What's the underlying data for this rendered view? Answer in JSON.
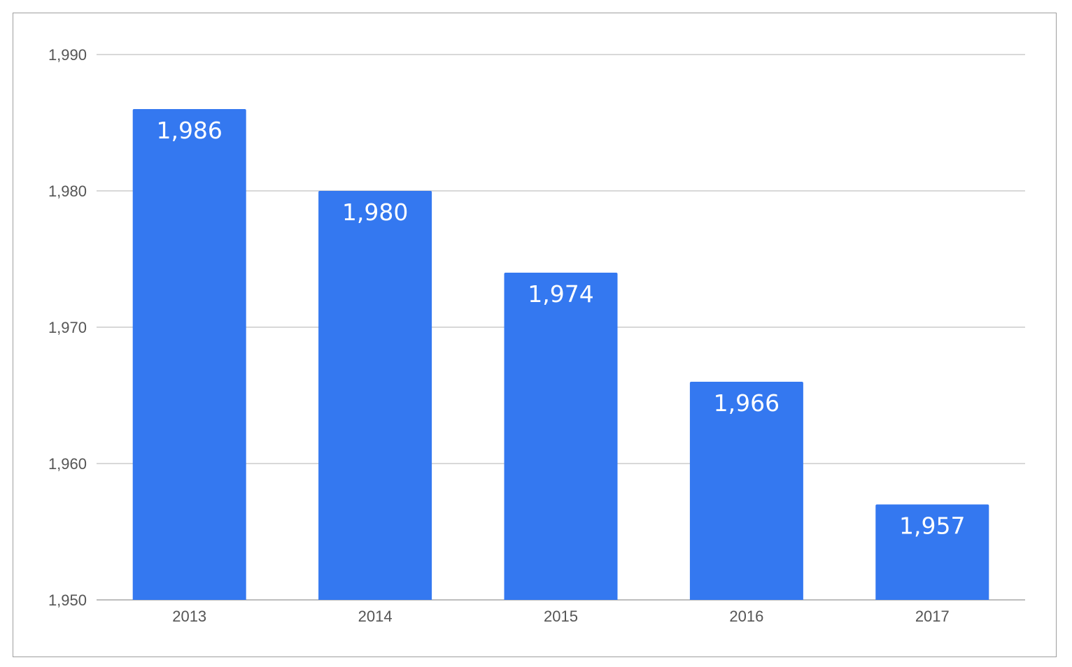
{
  "chart_data": {
    "type": "bar",
    "categories": [
      "2013",
      "2014",
      "2015",
      "2016",
      "2017"
    ],
    "values": [
      1986,
      1980,
      1974,
      1966,
      1957
    ],
    "value_labels": [
      "1,986",
      "1,980",
      "1,974",
      "1,966",
      "1,957"
    ],
    "ylim": [
      1950,
      1990
    ],
    "y_ticks": [
      1950,
      1960,
      1970,
      1980,
      1990
    ],
    "y_tick_labels": [
      "1,950",
      "1,960",
      "1,970",
      "1,980",
      "1,990"
    ],
    "grid": true,
    "legend": "none",
    "bar_color": "#3478f0",
    "title": "",
    "xlabel": "",
    "ylabel": ""
  }
}
